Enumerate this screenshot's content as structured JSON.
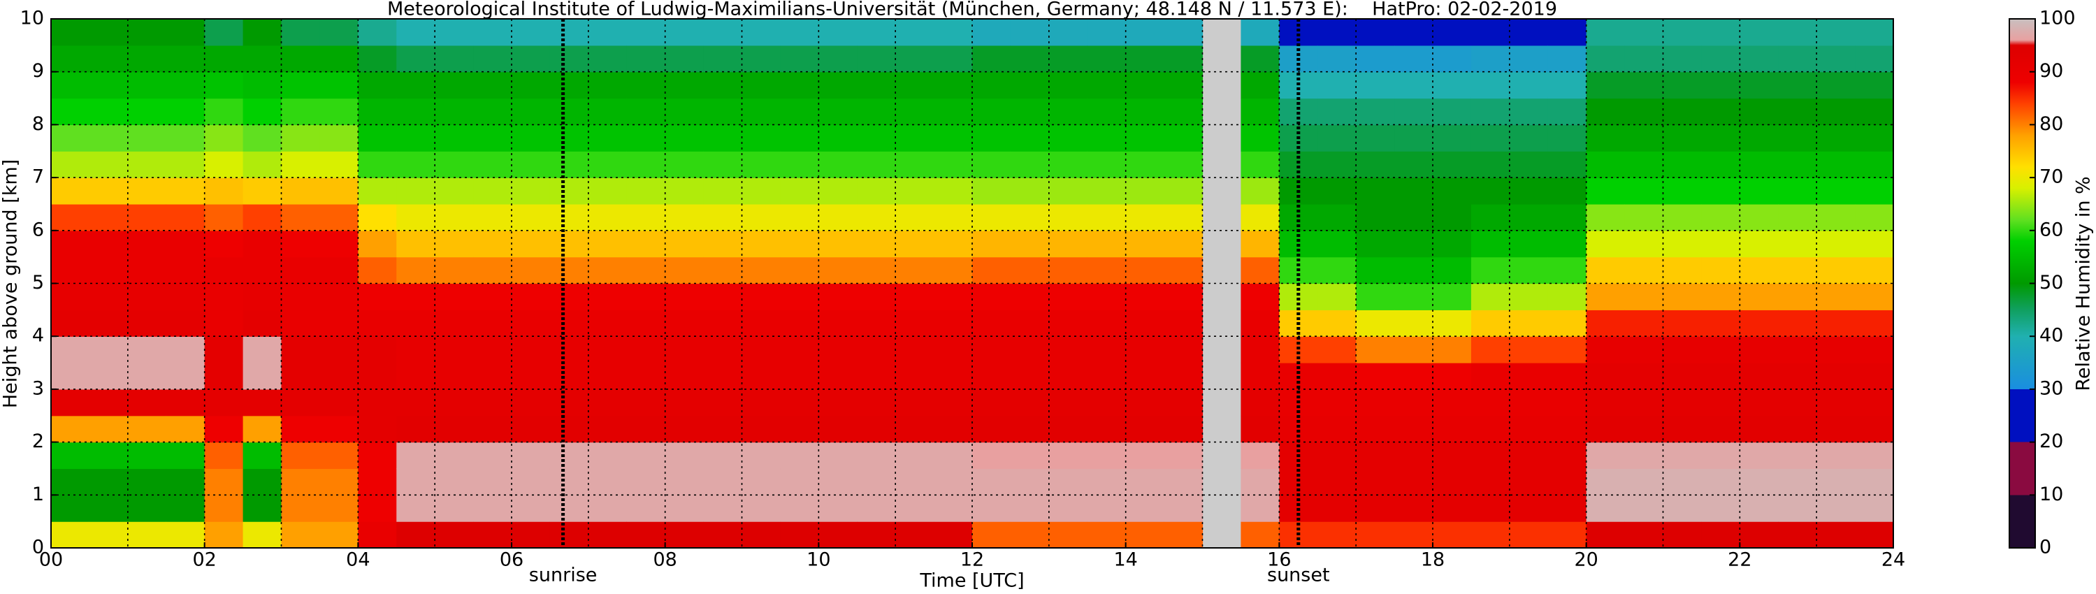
{
  "chart_data": {
    "type": "heatmap",
    "title": "Meteorological Institute of Ludwig-Maximilians-Universität (München, Germany; 48.148 N / 11.573 E):    HatPro: 02-02-2019",
    "xlabel": "Time [UTC]",
    "ylabel": "Height above ground [km]",
    "colorbar_label": "Relative Humidity in %",
    "xlim": [
      0,
      24
    ],
    "ylim": [
      0,
      10
    ],
    "clim": [
      0,
      100
    ],
    "xticks": [
      {
        "value": 0,
        "label": "00"
      },
      {
        "value": 2,
        "label": "02"
      },
      {
        "value": 4,
        "label": "04"
      },
      {
        "value": 6,
        "label": "06"
      },
      {
        "value": 8,
        "label": "08"
      },
      {
        "value": 10,
        "label": "10"
      },
      {
        "value": 12,
        "label": "12"
      },
      {
        "value": 14,
        "label": "14"
      },
      {
        "value": 16,
        "label": "16"
      },
      {
        "value": 18,
        "label": "18"
      },
      {
        "value": 20,
        "label": "20"
      },
      {
        "value": 22,
        "label": "22"
      },
      {
        "value": 24,
        "label": "24"
      }
    ],
    "xminor": [
      1,
      3,
      5,
      7,
      9,
      11,
      13,
      15,
      17,
      19,
      21,
      23
    ],
    "yticks": [
      0,
      1,
      2,
      3,
      4,
      5,
      6,
      7,
      8,
      9,
      10
    ],
    "cticks": [
      0,
      10,
      20,
      30,
      40,
      50,
      60,
      70,
      80,
      90,
      100
    ],
    "grid": true,
    "missing_color": "#cccccc",
    "colorscale": [
      [
        0,
        "#200a30"
      ],
      [
        10,
        "#200a30"
      ],
      [
        10,
        "#8a0a40"
      ],
      [
        20,
        "#8a0a40"
      ],
      [
        20,
        "#0010c0"
      ],
      [
        30,
        "#0010c0"
      ],
      [
        30,
        "#1a8ee0"
      ],
      [
        40,
        "#20b0b0"
      ],
      [
        45,
        "#10a060"
      ],
      [
        50,
        "#009a00"
      ],
      [
        58,
        "#00d000"
      ],
      [
        62,
        "#60e020"
      ],
      [
        68,
        "#d8f000"
      ],
      [
        72,
        "#ffe000"
      ],
      [
        78,
        "#ffa000"
      ],
      [
        84,
        "#ff4000"
      ],
      [
        88,
        "#ee0000"
      ],
      [
        95,
        "#dd0000"
      ],
      [
        96,
        "#e8a0a0"
      ],
      [
        100,
        "#c8c0c0"
      ]
    ],
    "annotations": [
      {
        "text": "sunrise",
        "x": 6.67
      },
      {
        "text": "sunset",
        "x": 16.25
      }
    ],
    "x_edges": [
      0,
      0.5,
      1,
      1.5,
      2,
      2.5,
      3,
      3.5,
      4,
      4.5,
      5,
      5.5,
      6,
      6.5,
      7,
      7.5,
      8,
      8.5,
      9,
      9.5,
      10,
      10.5,
      11,
      11.5,
      12,
      12.5,
      13,
      13.5,
      14,
      14.5,
      15,
      15.5,
      16,
      16.5,
      17,
      17.5,
      18,
      18.5,
      19,
      19.5,
      20,
      20.5,
      21,
      21.5,
      22,
      22.5,
      23,
      23.5,
      24
    ],
    "y_edges": [
      0,
      0.5,
      1,
      1.5,
      2,
      2.5,
      3,
      3.5,
      4,
      4.5,
      5,
      5.5,
      6,
      6.5,
      7,
      7.5,
      8,
      8.5,
      9,
      9.5,
      10
    ],
    "values": [
      [
        70,
        50,
        50,
        55,
        78,
        92,
        97,
        97,
        92,
        91,
        90,
        90,
        84,
        74,
        66,
        62,
        58,
        55,
        52,
        50
      ],
      [
        70,
        50,
        50,
        55,
        78,
        92,
        97,
        97,
        92,
        91,
        90,
        90,
        84,
        74,
        66,
        62,
        58,
        55,
        52,
        50
      ],
      [
        70,
        50,
        50,
        55,
        78,
        92,
        97,
        97,
        92,
        91,
        90,
        90,
        84,
        74,
        66,
        62,
        58,
        55,
        52,
        50
      ],
      [
        70,
        50,
        50,
        55,
        78,
        92,
        97,
        97,
        92,
        91,
        90,
        90,
        84,
        74,
        66,
        62,
        58,
        55,
        52,
        50
      ],
      [
        78,
        80,
        80,
        82,
        88,
        92,
        92,
        92,
        90,
        90,
        90,
        88,
        82,
        75,
        68,
        64,
        60,
        56,
        52,
        46
      ],
      [
        70,
        50,
        50,
        55,
        78,
        92,
        97,
        97,
        92,
        91,
        90,
        90,
        84,
        74,
        66,
        62,
        58,
        55,
        52,
        50
      ],
      [
        78,
        80,
        80,
        82,
        88,
        92,
        92,
        92,
        90,
        90,
        90,
        88,
        82,
        75,
        68,
        64,
        60,
        56,
        52,
        46
      ],
      [
        78,
        80,
        80,
        82,
        88,
        92,
        92,
        92,
        90,
        90,
        90,
        88,
        82,
        75,
        68,
        64,
        60,
        56,
        52,
        46
      ],
      [
        90,
        88,
        88,
        88,
        92,
        92,
        92,
        92,
        90,
        88,
        82,
        78,
        72,
        66,
        60,
        56,
        54,
        52,
        48,
        42
      ],
      [
        95,
        97,
        97,
        97,
        93,
        92,
        91,
        91,
        90,
        88,
        80,
        75,
        70,
        66,
        60,
        56,
        54,
        52,
        46,
        40
      ],
      [
        95,
        97,
        97,
        97,
        93,
        92,
        91,
        91,
        90,
        88,
        80,
        75,
        70,
        66,
        60,
        56,
        54,
        52,
        46,
        40
      ],
      [
        95,
        97,
        97,
        97,
        93,
        92,
        91,
        91,
        90,
        88,
        80,
        75,
        70,
        66,
        60,
        56,
        54,
        52,
        46,
        40
      ],
      [
        95,
        97,
        97,
        97,
        93,
        92,
        91,
        91,
        90,
        88,
        80,
        75,
        70,
        66,
        60,
        56,
        54,
        52,
        46,
        40
      ],
      [
        95,
        97,
        97,
        97,
        93,
        92,
        91,
        91,
        90,
        88,
        80,
        75,
        70,
        66,
        60,
        56,
        54,
        52,
        46,
        40
      ],
      [
        95,
        97,
        97,
        97,
        93,
        92,
        91,
        91,
        90,
        88,
        80,
        75,
        70,
        66,
        60,
        56,
        54,
        52,
        46,
        40
      ],
      [
        95,
        97,
        97,
        97,
        93,
        92,
        91,
        91,
        90,
        88,
        80,
        75,
        70,
        66,
        60,
        56,
        54,
        52,
        46,
        40
      ],
      [
        95,
        97,
        97,
        97,
        93,
        92,
        91,
        91,
        90,
        88,
        80,
        75,
        70,
        66,
        60,
        56,
        54,
        52,
        46,
        40
      ],
      [
        95,
        97,
        97,
        97,
        93,
        92,
        91,
        91,
        90,
        88,
        80,
        75,
        70,
        66,
        60,
        56,
        54,
        52,
        46,
        40
      ],
      [
        95,
        97,
        97,
        97,
        93,
        92,
        91,
        91,
        90,
        88,
        80,
        75,
        70,
        66,
        60,
        56,
        54,
        52,
        46,
        40
      ],
      [
        95,
        97,
        97,
        97,
        93,
        92,
        91,
        91,
        90,
        88,
        80,
        75,
        70,
        66,
        60,
        56,
        54,
        52,
        46,
        40
      ],
      [
        95,
        97,
        97,
        97,
        93,
        92,
        91,
        91,
        90,
        88,
        80,
        75,
        70,
        66,
        60,
        56,
        54,
        52,
        46,
        40
      ],
      [
        95,
        97,
        97,
        97,
        93,
        92,
        91,
        91,
        90,
        88,
        80,
        75,
        70,
        66,
        60,
        56,
        54,
        52,
        46,
        40
      ],
      [
        95,
        97,
        97,
        97,
        93,
        92,
        91,
        91,
        90,
        88,
        80,
        75,
        70,
        66,
        60,
        56,
        54,
        52,
        46,
        40
      ],
      [
        95,
        97,
        97,
        97,
        93,
        92,
        91,
        91,
        90,
        88,
        80,
        75,
        70,
        66,
        60,
        56,
        54,
        52,
        46,
        40
      ],
      [
        82,
        97,
        97,
        96,
        93,
        92,
        91,
        91,
        90,
        88,
        82,
        76,
        70,
        65,
        60,
        56,
        54,
        52,
        48,
        38
      ],
      [
        82,
        97,
        97,
        96,
        93,
        92,
        91,
        91,
        90,
        88,
        82,
        76,
        70,
        65,
        60,
        56,
        54,
        52,
        48,
        38
      ],
      [
        82,
        97,
        97,
        96,
        93,
        92,
        91,
        91,
        90,
        88,
        82,
        76,
        70,
        65,
        60,
        56,
        54,
        52,
        48,
        38
      ],
      [
        82,
        97,
        97,
        96,
        93,
        92,
        91,
        91,
        90,
        88,
        82,
        76,
        70,
        65,
        60,
        56,
        54,
        52,
        48,
        38
      ],
      [
        82,
        97,
        97,
        96,
        93,
        92,
        91,
        91,
        90,
        88,
        82,
        76,
        70,
        65,
        60,
        56,
        54,
        52,
        48,
        38
      ],
      [
        82,
        97,
        97,
        96,
        93,
        92,
        91,
        91,
        90,
        88,
        82,
        76,
        70,
        65,
        60,
        56,
        54,
        52,
        48,
        38
      ],
      [
        null,
        null,
        null,
        null,
        null,
        null,
        null,
        null,
        null,
        null,
        null,
        null,
        null,
        null,
        null,
        null,
        null,
        null,
        null,
        null
      ],
      [
        82,
        97,
        97,
        96,
        93,
        92,
        91,
        91,
        90,
        88,
        82,
        76,
        70,
        65,
        60,
        56,
        54,
        52,
        48,
        38
      ],
      [
        85,
        92,
        92,
        92,
        91,
        90,
        90,
        84,
        74,
        66,
        60,
        55,
        52,
        50,
        48,
        46,
        44,
        40,
        35,
        30
      ],
      [
        85,
        92,
        92,
        92,
        91,
        90,
        90,
        84,
        74,
        66,
        60,
        55,
        52,
        50,
        48,
        46,
        44,
        40,
        35,
        30
      ],
      [
        85,
        92,
        92,
        92,
        91,
        90,
        88,
        80,
        70,
        60,
        55,
        52,
        50,
        50,
        48,
        46,
        44,
        40,
        34,
        28
      ],
      [
        85,
        92,
        92,
        92,
        91,
        90,
        88,
        80,
        70,
        60,
        55,
        52,
        50,
        50,
        48,
        46,
        44,
        40,
        34,
        28
      ],
      [
        85,
        92,
        92,
        92,
        91,
        90,
        88,
        80,
        70,
        60,
        55,
        52,
        50,
        50,
        48,
        46,
        44,
        40,
        34,
        28
      ],
      [
        85,
        92,
        92,
        92,
        91,
        90,
        90,
        84,
        74,
        66,
        60,
        55,
        52,
        50,
        48,
        46,
        44,
        40,
        35,
        30
      ],
      [
        85,
        92,
        92,
        92,
        91,
        90,
        90,
        84,
        74,
        66,
        60,
        55,
        52,
        50,
        48,
        46,
        44,
        40,
        35,
        30
      ],
      [
        85,
        92,
        92,
        92,
        91,
        90,
        90,
        84,
        74,
        66,
        60,
        55,
        52,
        50,
        48,
        46,
        44,
        40,
        35,
        30
      ],
      [
        95,
        98,
        98,
        97,
        93,
        92,
        92,
        91,
        86,
        78,
        74,
        68,
        64,
        58,
        55,
        52,
        50,
        48,
        44,
        42
      ],
      [
        95,
        98,
        98,
        97,
        93,
        92,
        92,
        91,
        86,
        78,
        74,
        68,
        64,
        58,
        55,
        52,
        50,
        48,
        44,
        42
      ],
      [
        95,
        98,
        98,
        97,
        93,
        92,
        92,
        91,
        86,
        78,
        74,
        68,
        64,
        58,
        55,
        52,
        50,
        48,
        44,
        42
      ],
      [
        95,
        98,
        98,
        97,
        93,
        92,
        92,
        91,
        86,
        78,
        74,
        68,
        64,
        58,
        55,
        52,
        50,
        48,
        44,
        42
      ],
      [
        95,
        98,
        98,
        97,
        93,
        92,
        92,
        91,
        86,
        78,
        74,
        68,
        64,
        58,
        55,
        52,
        50,
        48,
        44,
        42
      ],
      [
        95,
        98,
        98,
        97,
        93,
        92,
        92,
        91,
        86,
        78,
        74,
        68,
        64,
        58,
        55,
        52,
        50,
        48,
        44,
        42
      ],
      [
        95,
        98,
        98,
        97,
        93,
        92,
        92,
        91,
        86,
        78,
        74,
        68,
        64,
        58,
        55,
        52,
        50,
        48,
        44,
        42
      ],
      [
        95,
        98,
        98,
        97,
        93,
        92,
        92,
        91,
        86,
        78,
        74,
        68,
        64,
        58,
        55,
        52,
        50,
        48,
        44,
        42
      ]
    ]
  }
}
